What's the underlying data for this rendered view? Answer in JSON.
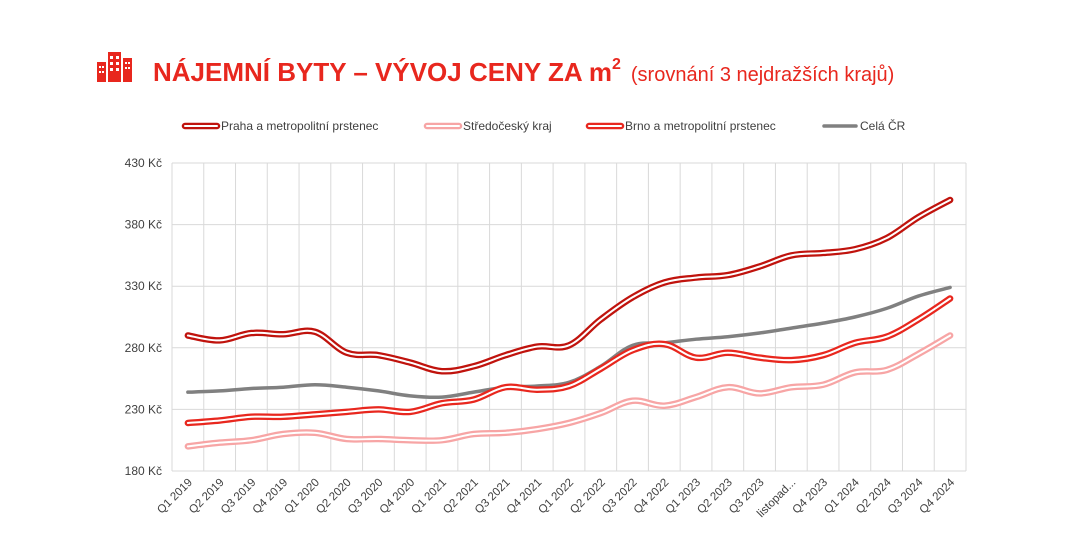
{
  "chart_data": {
    "type": "line",
    "title": "NÁJEMNÍ BYTY – VÝVOJ CENY ZA m",
    "title_superscript": "2",
    "subtitle": "(srovnání 3 nejdražších krajů)",
    "title_icon": "buildings-icon",
    "ylim": [
      180,
      430
    ],
    "yticks": [
      180,
      230,
      280,
      330,
      380,
      430
    ],
    "ytick_suffix": " Kč",
    "grid": true,
    "legend_position": "top",
    "categories": [
      "Q1 2019",
      "Q2 2019",
      "Q3 2019",
      "Q4 2019",
      "Q1 2020",
      "Q2 2020",
      "Q3 2020",
      "Q4 2020",
      "Q1 2021",
      "Q2 2021",
      "Q3 2021",
      "Q4 2021",
      "Q1 2022",
      "Q2 2022",
      "Q3 2022",
      "Q4 2022",
      "Q1 2023",
      "Q2 2023",
      "Q3 2023",
      "listopad...",
      "Q4 2023",
      "Q1 2024",
      "Q2 2024",
      "Q3 2024",
      "Q4 2024"
    ],
    "series": [
      {
        "name": "Praha a metropolitní prstenec",
        "style": "double",
        "color": "#c0130d",
        "values": [
          290,
          286,
          292,
          291,
          293,
          276,
          274,
          268,
          261,
          265,
          274,
          281,
          282,
          303,
          321,
          333,
          337,
          339,
          346,
          355,
          357,
          360,
          369,
          386,
          400
        ]
      },
      {
        "name": "Středočeský kraj",
        "style": "double",
        "color": "#f7a5a5",
        "values": [
          200,
          203,
          205,
          210,
          211,
          206,
          206,
          205,
          205,
          210,
          211,
          214,
          219,
          227,
          237,
          233,
          240,
          248,
          243,
          248,
          250,
          260,
          262,
          275,
          290
        ]
      },
      {
        "name": "Brno a metropolitní prstenec",
        "style": "double",
        "color": "#e8271e",
        "values": [
          219,
          221,
          224,
          224,
          226,
          228,
          230,
          228,
          235,
          238,
          248,
          246,
          249,
          263,
          278,
          283,
          272,
          276,
          272,
          270,
          274,
          284,
          289,
          303,
          320
        ]
      },
      {
        "name": "Celá ČR",
        "style": "single",
        "color": "#808080",
        "values": [
          244,
          245,
          247,
          248,
          250,
          248,
          245,
          241,
          240,
          244,
          248,
          249,
          252,
          265,
          282,
          284,
          287,
          289,
          292,
          296,
          300,
          305,
          312,
          322,
          329
        ]
      }
    ]
  }
}
